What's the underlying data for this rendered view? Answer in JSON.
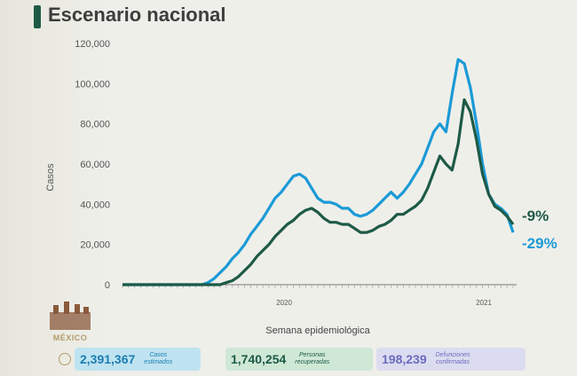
{
  "header": {
    "title": "Escenario nacional"
  },
  "logo": {
    "text": "MÉXICO"
  },
  "stats": [
    {
      "value": "2,391,367",
      "label_line1": "Casos",
      "label_line2": "estimados"
    },
    {
      "value": "1,740,254",
      "label_line1": "Personas",
      "label_line2": "recuperadas"
    },
    {
      "value": "198,239",
      "label_line1": "Defunciones",
      "label_line2": "confirmadas"
    }
  ],
  "colors": {
    "estimated": "#1b9ad6",
    "confirmed": "#1d5a46",
    "accent": "#1d5a46"
  },
  "chart_data": {
    "type": "line",
    "title": "",
    "xlabel": "Semana epidemiológica",
    "ylabel": "Casos",
    "ylim": [
      0,
      120000
    ],
    "yticks": [
      "0",
      "20,000",
      "40,000",
      "60,000",
      "80,000",
      "100,000",
      "120,000"
    ],
    "year_labels": [
      "2020",
      "2021"
    ],
    "grid": false,
    "series": [
      {
        "color": "#1b9ad6",
        "end_label": "-29%",
        "values": [
          0,
          0,
          0,
          0,
          0,
          0,
          0,
          0,
          0,
          0,
          0,
          0,
          0,
          0,
          1000,
          3000,
          6000,
          9000,
          13000,
          16000,
          20000,
          25000,
          29000,
          33000,
          38000,
          43000,
          46000,
          50000,
          54000,
          55000,
          53000,
          48000,
          43000,
          41000,
          41000,
          40000,
          38000,
          38000,
          35000,
          34000,
          35000,
          37000,
          40000,
          43000,
          46000,
          43000,
          46000,
          50000,
          55000,
          60000,
          68000,
          76000,
          80000,
          76000,
          95000,
          112000,
          110000,
          98000,
          80000,
          60000,
          45000,
          40000,
          38000,
          35000,
          26000
        ]
      },
      {
        "color": "#1d5a46",
        "end_label": "-9%",
        "values": [
          0,
          0,
          0,
          0,
          0,
          0,
          0,
          0,
          0,
          0,
          0,
          0,
          0,
          0,
          0,
          0,
          0,
          1000,
          2000,
          4000,
          7000,
          10000,
          14000,
          17000,
          20000,
          24000,
          27000,
          30000,
          32000,
          35000,
          37000,
          38000,
          36000,
          33000,
          31000,
          31000,
          30000,
          30000,
          28000,
          26000,
          26000,
          27000,
          29000,
          30000,
          32000,
          35000,
          35000,
          37000,
          39000,
          42000,
          48000,
          56000,
          64000,
          60000,
          57000,
          70000,
          92000,
          86000,
          72000,
          55000,
          45000,
          39000,
          37000,
          34000,
          30000
        ]
      }
    ]
  }
}
